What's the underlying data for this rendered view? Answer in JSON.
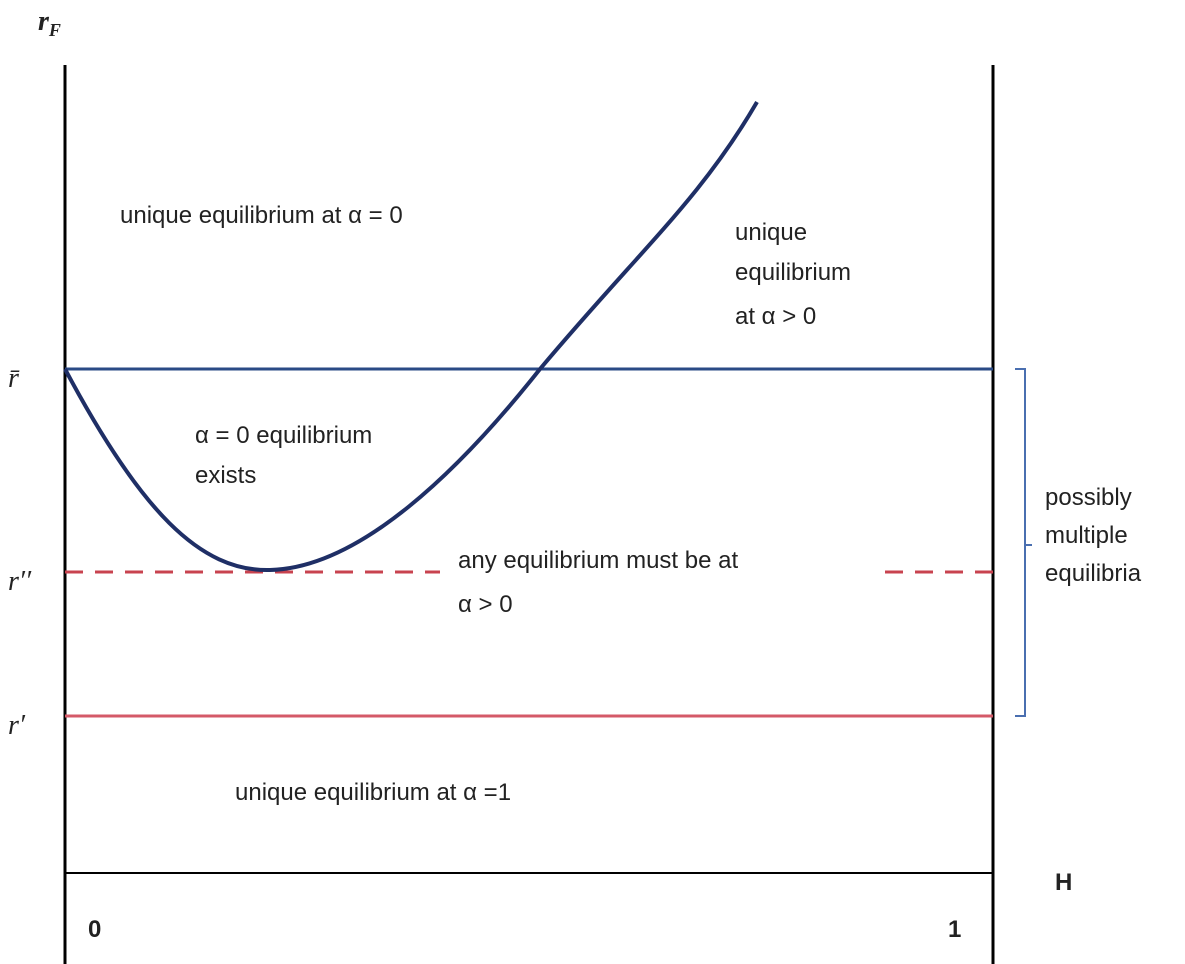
{
  "y_axis": {
    "symbol": "r",
    "subscript": "F"
  },
  "x_axis": {
    "label": "H",
    "start": "0",
    "end": "1"
  },
  "levels": {
    "r_bar": "r̄",
    "r_double_prime": "r′′",
    "r_prime": "r′"
  },
  "regions": {
    "top_left": "unique equilibrium at α = 0",
    "top_right": [
      "unique",
      "equilibrium",
      "at α > 0"
    ],
    "inside_curve": [
      "α = 0 equilibrium",
      "exists"
    ],
    "middle": [
      "any equilibrium must be at",
      "α > 0"
    ],
    "bottom": "unique equilibrium at α =1",
    "bracket": [
      "possibly",
      "multiple",
      "equilibria"
    ]
  }
}
